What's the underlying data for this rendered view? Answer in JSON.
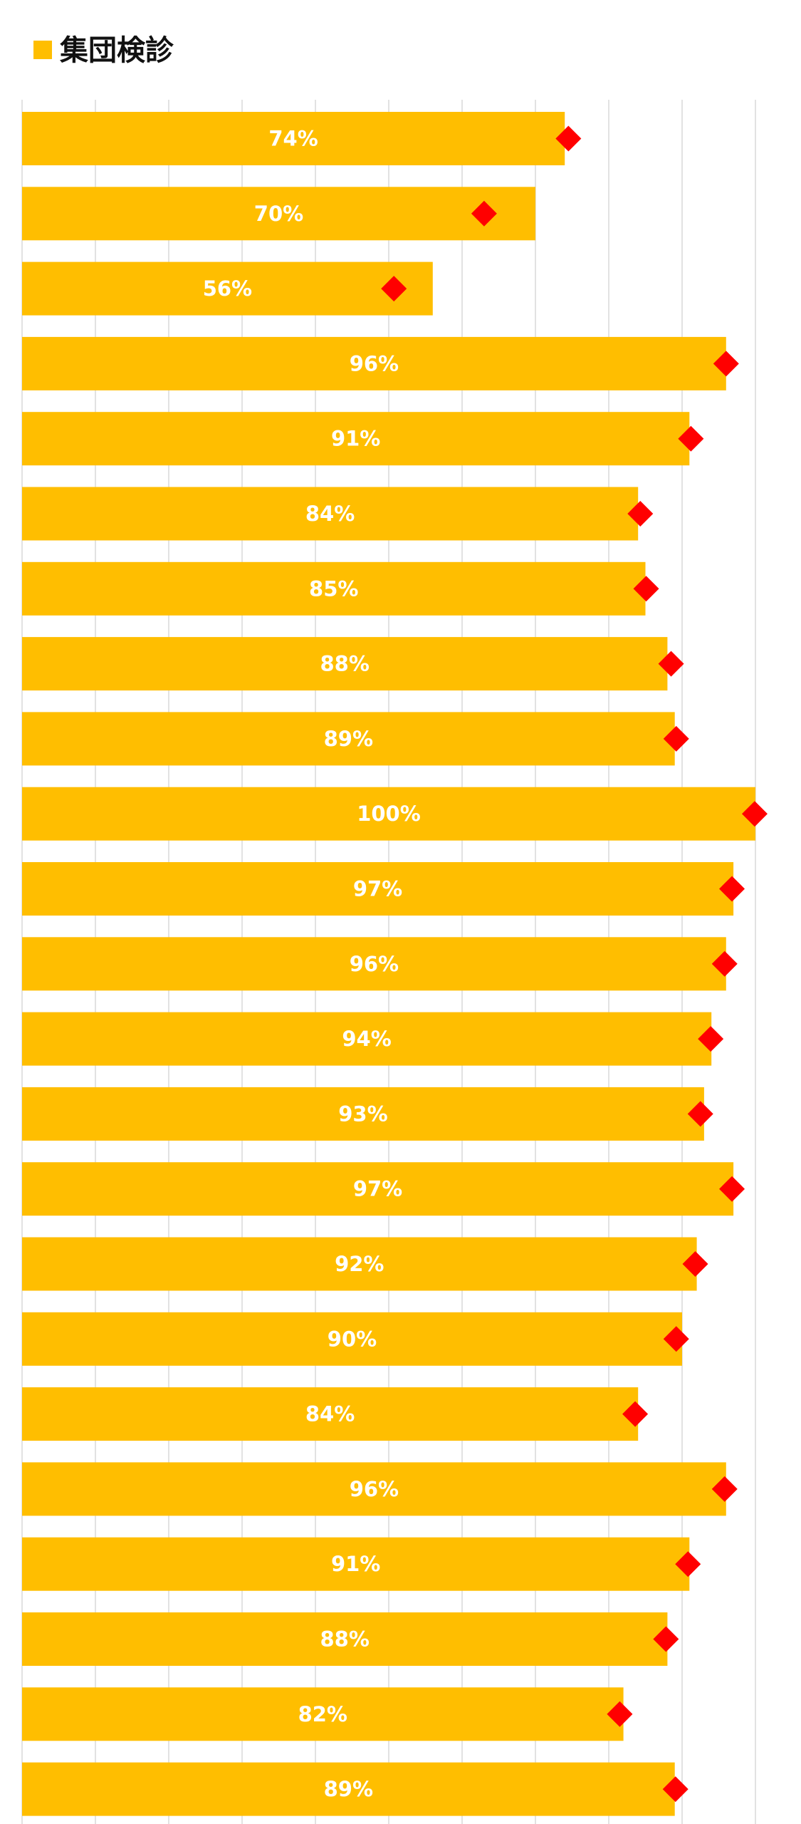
{
  "chart_data": {
    "type": "bar",
    "orientation": "horizontal",
    "xlim": [
      0,
      100
    ],
    "grid": true,
    "legend_position": "top-left",
    "legend": [
      {
        "name": "集団検診",
        "color": "#FFBE00",
        "marker": "square"
      }
    ],
    "series": [
      {
        "name": "集団検診",
        "type": "bar",
        "color": "#FFBE00",
        "values": [
          74,
          70,
          56,
          96,
          91,
          84,
          85,
          88,
          89,
          100,
          97,
          96,
          94,
          93,
          97,
          92,
          90,
          84,
          96,
          91,
          88,
          82,
          89
        ],
        "labels": [
          "74%",
          "70%",
          "56%",
          "96%",
          "91%",
          "84%",
          "85%",
          "88%",
          "89%",
          "100%",
          "97%",
          "96%",
          "94%",
          "93%",
          "97%",
          "92%",
          "90%",
          "84%",
          "96%",
          "91%",
          "88%",
          "82%",
          "89%"
        ]
      },
      {
        "type": "scatter",
        "marker": "diamond",
        "color": "#FF0000",
        "values": [
          74.5,
          63,
          50.7,
          96,
          91.2,
          84.3,
          85.1,
          88.5,
          89.2,
          99.9,
          96.8,
          95.8,
          93.9,
          92.5,
          96.8,
          91.8,
          89.2,
          83.6,
          95.8,
          90.8,
          87.8,
          81.5,
          89.1
        ]
      }
    ]
  }
}
